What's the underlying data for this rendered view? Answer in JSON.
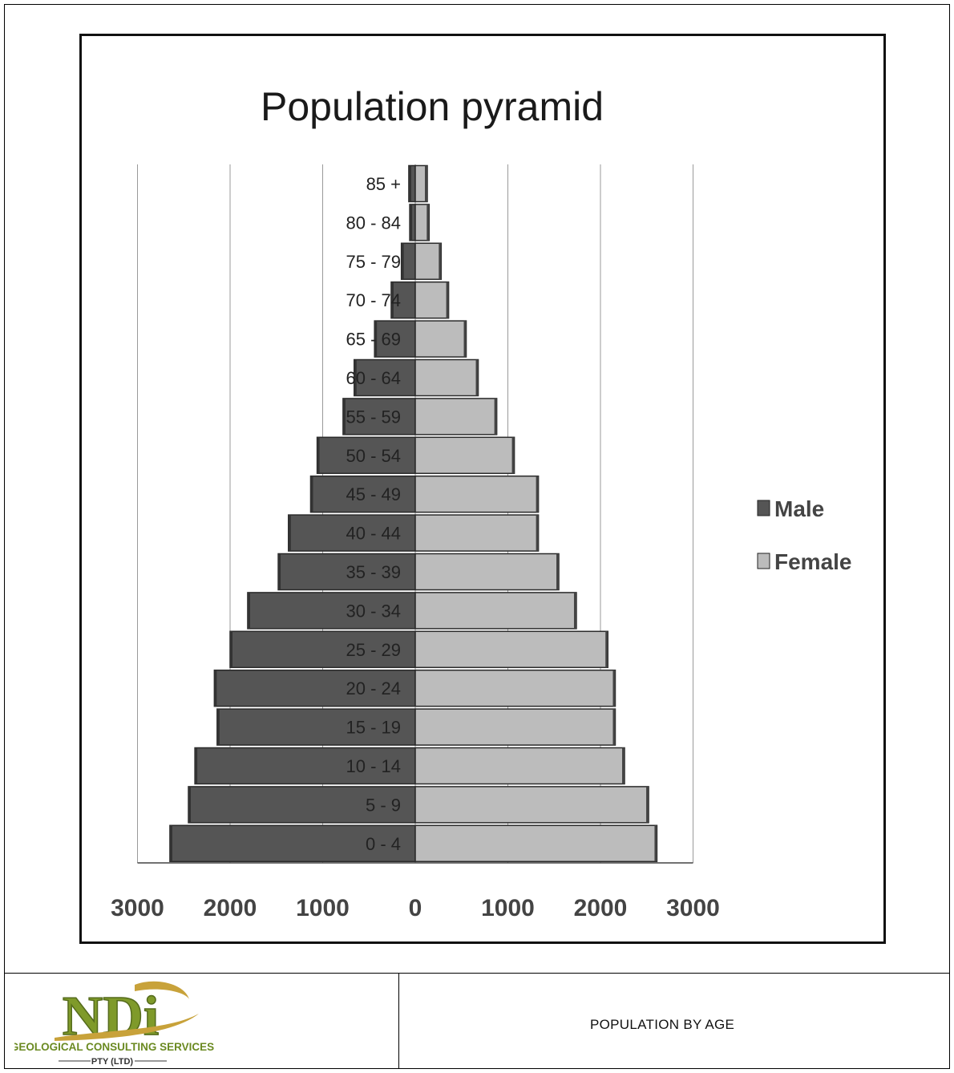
{
  "chart_data": {
    "type": "bar",
    "orientation": "horizontal",
    "title": "Population pyramid",
    "categories": [
      "0 - 4",
      "5 - 9",
      "10 - 14",
      "15 - 19",
      "20 - 24",
      "25 - 29",
      "30 - 34",
      "35 - 39",
      "40 - 44",
      "45 - 49",
      "50 - 54",
      "55 - 59",
      "60 - 64",
      "65 - 69",
      "70 - 74",
      "75 - 79",
      "80 - 84",
      "85 +"
    ],
    "series": [
      {
        "name": "Male",
        "color": "#555555",
        "values": [
          2650,
          2450,
          2380,
          2140,
          2170,
          2000,
          1810,
          1480,
          1370,
          1130,
          1060,
          780,
          660,
          440,
          260,
          150,
          60,
          70
        ]
      },
      {
        "name": "Female",
        "color": "#bcbcbc",
        "values": [
          2610,
          2520,
          2260,
          2160,
          2160,
          2080,
          1740,
          1550,
          1330,
          1330,
          1070,
          880,
          680,
          550,
          360,
          280,
          150,
          130
        ]
      }
    ],
    "xlim": [
      -3000,
      3000
    ],
    "xticks": [
      "3000",
      "2000",
      "1000",
      "0",
      "1000",
      "2000",
      "3000"
    ],
    "grid": true,
    "legend_position": "right"
  },
  "legend": {
    "male_label": "Male",
    "female_label": "Female"
  },
  "footer": {
    "company_name": "GEOLOGICAL CONSULTING SERVICES",
    "company_suffix": "PTY (LTD)",
    "logo_text": "NDi",
    "caption": "POPULATION BY AGE"
  }
}
